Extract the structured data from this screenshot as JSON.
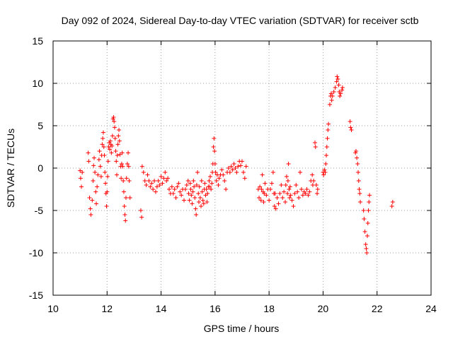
{
  "chart_data": {
    "type": "scatter",
    "title": "Day 092 of 2024, Sidereal Day-to-day VTEC variation (SDTVAR) for receiver sctb",
    "xlabel": "GPS time / hours",
    "ylabel": "SDTVAR / TECUs",
    "xlim": [
      10,
      24
    ],
    "ylim": [
      -15,
      15
    ],
    "xticks": [
      10,
      12,
      14,
      16,
      18,
      20,
      22,
      24
    ],
    "yticks": [
      -15,
      -10,
      -5,
      0,
      5,
      10,
      15
    ],
    "xtick_labels": [
      "10",
      "12",
      "14",
      "16",
      "18",
      "20",
      "22",
      "24"
    ],
    "ytick_labels": [
      "-15",
      "-10",
      "-5",
      "0",
      "5",
      "10",
      "15"
    ],
    "grid": true,
    "legend": "none",
    "marker": "+",
    "color": "#ff0000",
    "series": [
      {
        "name": "SDTVAR",
        "points": [
          [
            11.0,
            -0.3
          ],
          [
            11.02,
            -1.2
          ],
          [
            11.05,
            -2.2
          ],
          [
            11.08,
            -0.5
          ],
          [
            11.3,
            1.8
          ],
          [
            11.32,
            0.8
          ],
          [
            11.35,
            -3.5
          ],
          [
            11.38,
            -4.8
          ],
          [
            11.4,
            -5.5
          ],
          [
            11.45,
            -3.8
          ],
          [
            11.48,
            -1.5
          ],
          [
            11.5,
            0.3
          ],
          [
            11.52,
            1.2
          ],
          [
            11.55,
            -0.5
          ],
          [
            11.58,
            -2.8
          ],
          [
            11.6,
            -4.2
          ],
          [
            11.63,
            -2.2
          ],
          [
            11.66,
            -0.8
          ],
          [
            11.7,
            1.0
          ],
          [
            11.72,
            2.0
          ],
          [
            11.75,
            0.2
          ],
          [
            11.78,
            -1.0
          ],
          [
            11.8,
            1.5
          ],
          [
            11.82,
            2.8
          ],
          [
            11.84,
            3.5
          ],
          [
            11.86,
            4.2
          ],
          [
            11.88,
            2.5
          ],
          [
            11.9,
            1.5
          ],
          [
            11.92,
            -0.5
          ],
          [
            11.94,
            -1.8
          ],
          [
            11.96,
            -3.0
          ],
          [
            11.98,
            -4.5
          ],
          [
            12.0,
            -2.8
          ],
          [
            12.02,
            -1.0
          ],
          [
            12.04,
            0.8
          ],
          [
            12.06,
            2.5
          ],
          [
            12.08,
            3.0
          ],
          [
            12.1,
            2.2
          ],
          [
            12.12,
            3.2
          ],
          [
            12.14,
            2.8
          ],
          [
            12.16,
            1.8
          ],
          [
            12.18,
            2.6
          ],
          [
            12.2,
            3.8
          ],
          [
            12.22,
            5.8
          ],
          [
            12.24,
            6.0
          ],
          [
            12.26,
            5.5
          ],
          [
            12.28,
            4.8
          ],
          [
            12.3,
            3.5
          ],
          [
            12.32,
            2.0
          ],
          [
            12.34,
            0.8
          ],
          [
            12.36,
            -0.8
          ],
          [
            12.38,
            1.5
          ],
          [
            12.4,
            2.8
          ],
          [
            12.42,
            3.8
          ],
          [
            12.44,
            4.5
          ],
          [
            12.46,
            3.2
          ],
          [
            12.48,
            1.6
          ],
          [
            12.5,
            0.2
          ],
          [
            12.52,
            -1.2
          ],
          [
            12.54,
            0.5
          ],
          [
            12.56,
            1.8
          ],
          [
            12.58,
            0.2
          ],
          [
            12.6,
            -1.5
          ],
          [
            12.62,
            -2.8
          ],
          [
            12.64,
            -4.5
          ],
          [
            12.66,
            -5.5
          ],
          [
            12.68,
            -6.2
          ],
          [
            12.7,
            -3.5
          ],
          [
            12.72,
            -1.2
          ],
          [
            12.75,
            0.5
          ],
          [
            12.78,
            1.8
          ],
          [
            12.8,
            0.2
          ],
          [
            12.82,
            -1.5
          ],
          [
            12.85,
            -3.5
          ],
          [
            13.25,
            -5.0
          ],
          [
            13.28,
            -5.8
          ],
          [
            13.3,
            0.2
          ],
          [
            13.35,
            -0.5
          ],
          [
            13.4,
            -1.5
          ],
          [
            13.45,
            -2.0
          ],
          [
            13.5,
            -0.8
          ],
          [
            13.55,
            -1.5
          ],
          [
            13.6,
            -2.2
          ],
          [
            13.65,
            -1.8
          ],
          [
            13.7,
            -2.5
          ],
          [
            13.75,
            -1.5
          ],
          [
            13.8,
            -2.8
          ],
          [
            13.85,
            -2.2
          ],
          [
            13.9,
            -1.5
          ],
          [
            13.95,
            -2.0
          ],
          [
            14.0,
            -1.0
          ],
          [
            14.05,
            -1.8
          ],
          [
            14.1,
            -1.2
          ],
          [
            14.15,
            -0.5
          ],
          [
            14.2,
            -1.5
          ],
          [
            14.25,
            -1.2
          ],
          [
            14.3,
            -2.5
          ],
          [
            14.35,
            -3.0
          ],
          [
            14.4,
            -2.2
          ],
          [
            14.45,
            -3.0
          ],
          [
            14.5,
            -2.5
          ],
          [
            14.55,
            -3.5
          ],
          [
            14.6,
            -2.2
          ],
          [
            14.65,
            -1.8
          ],
          [
            14.7,
            -2.8
          ],
          [
            14.75,
            -3.2
          ],
          [
            14.8,
            -2.5
          ],
          [
            14.85,
            -3.8
          ],
          [
            14.9,
            -2.5
          ],
          [
            14.95,
            -2.0
          ],
          [
            15.0,
            -1.5
          ],
          [
            15.02,
            -3.0
          ],
          [
            15.05,
            -3.8
          ],
          [
            15.08,
            -1.8
          ],
          [
            15.1,
            -2.5
          ],
          [
            15.12,
            -3.2
          ],
          [
            15.15,
            -4.2
          ],
          [
            15.18,
            -2.8
          ],
          [
            15.2,
            -1.5
          ],
          [
            15.22,
            -2.2
          ],
          [
            15.25,
            -3.5
          ],
          [
            15.28,
            -4.8
          ],
          [
            15.3,
            -5.5
          ],
          [
            15.32,
            -2.0
          ],
          [
            15.35,
            -0.5
          ],
          [
            15.38,
            -3.0
          ],
          [
            15.4,
            -4.0
          ],
          [
            15.42,
            -2.2
          ],
          [
            15.45,
            -3.5
          ],
          [
            15.48,
            -4.5
          ],
          [
            15.5,
            -1.5
          ],
          [
            15.52,
            -2.8
          ],
          [
            15.55,
            -3.8
          ],
          [
            15.58,
            -4.2
          ],
          [
            15.6,
            -2.5
          ],
          [
            15.62,
            -1.8
          ],
          [
            15.65,
            -3.2
          ],
          [
            15.68,
            -2.5
          ],
          [
            15.7,
            -4.0
          ],
          [
            15.72,
            -3.0
          ],
          [
            15.75,
            -2.2
          ],
          [
            15.78,
            -1.5
          ],
          [
            15.8,
            -2.2
          ],
          [
            15.82,
            -1.0
          ],
          [
            15.85,
            -2.5
          ],
          [
            15.88,
            -1.8
          ],
          [
            15.9,
            -0.5
          ],
          [
            15.92,
            0.5
          ],
          [
            15.94,
            2.5
          ],
          [
            15.96,
            3.5
          ],
          [
            15.98,
            2.0
          ],
          [
            16.0,
            0.5
          ],
          [
            16.02,
            -0.5
          ],
          [
            16.05,
            -1.5
          ],
          [
            16.08,
            -0.8
          ],
          [
            16.12,
            -2.0
          ],
          [
            16.15,
            -1.2
          ],
          [
            16.2,
            -0.8
          ],
          [
            16.25,
            -0.2
          ],
          [
            16.3,
            -0.8
          ],
          [
            16.35,
            -1.5
          ],
          [
            16.4,
            -2.5
          ],
          [
            16.45,
            -0.5
          ],
          [
            16.5,
            0.0
          ],
          [
            16.55,
            -0.5
          ],
          [
            16.6,
            0.2
          ],
          [
            16.65,
            -0.2
          ],
          [
            16.7,
            0.5
          ],
          [
            16.75,
            0.0
          ],
          [
            16.8,
            -0.5
          ],
          [
            16.85,
            0.2
          ],
          [
            16.9,
            0.8
          ],
          [
            16.95,
            0.3
          ],
          [
            17.0,
            0.8
          ],
          [
            17.05,
            -0.5
          ],
          [
            17.1,
            -1.2
          ],
          [
            17.15,
            0.2
          ],
          [
            17.6,
            -2.5
          ],
          [
            17.63,
            -3.5
          ],
          [
            17.66,
            -2.2
          ],
          [
            17.7,
            -3.8
          ],
          [
            17.72,
            -2.5
          ],
          [
            17.75,
            -0.8
          ],
          [
            17.78,
            -2.8
          ],
          [
            17.8,
            -4.0
          ],
          [
            17.82,
            -3.0
          ],
          [
            17.85,
            -1.8
          ],
          [
            17.9,
            -3.2
          ],
          [
            17.95,
            -2.5
          ],
          [
            18.0,
            -3.8
          ],
          [
            18.05,
            -2.5
          ],
          [
            18.1,
            -1.8
          ],
          [
            18.15,
            -0.5
          ],
          [
            18.18,
            -3.0
          ],
          [
            18.2,
            -4.5
          ],
          [
            18.22,
            -3.0
          ],
          [
            18.25,
            -4.8
          ],
          [
            18.3,
            -3.5
          ],
          [
            18.35,
            -4.2
          ],
          [
            18.4,
            -3.0
          ],
          [
            18.45,
            -2.0
          ],
          [
            18.5,
            -3.5
          ],
          [
            18.55,
            -2.8
          ],
          [
            18.6,
            -4.0
          ],
          [
            18.62,
            -2.0
          ],
          [
            18.65,
            -1.0
          ],
          [
            18.68,
            -3.0
          ],
          [
            18.7,
            -1.5
          ],
          [
            18.72,
            0.5
          ],
          [
            18.74,
            -2.5
          ],
          [
            18.76,
            -3.5
          ],
          [
            18.78,
            -2.2
          ],
          [
            18.8,
            -3.2
          ],
          [
            18.85,
            -3.8
          ],
          [
            18.9,
            -4.5
          ],
          [
            18.95,
            -3.0
          ],
          [
            19.0,
            -2.0
          ],
          [
            19.05,
            -2.8
          ],
          [
            19.1,
            -3.5
          ],
          [
            19.15,
            -0.5
          ],
          [
            19.2,
            -2.5
          ],
          [
            19.25,
            -3.2
          ],
          [
            19.3,
            -2.8
          ],
          [
            19.35,
            -3.0
          ],
          [
            19.4,
            -2.5
          ],
          [
            19.45,
            -3.2
          ],
          [
            19.5,
            -2.8
          ],
          [
            19.55,
            -1.5
          ],
          [
            19.6,
            -0.8
          ],
          [
            19.62,
            -2.0
          ],
          [
            19.65,
            -1.5
          ],
          [
            19.7,
            3.0
          ],
          [
            19.72,
            2.5
          ],
          [
            19.75,
            -2.0
          ],
          [
            19.78,
            -3.0
          ],
          [
            19.8,
            -2.5
          ],
          [
            20.0,
            -0.5
          ],
          [
            20.02,
            -0.8
          ],
          [
            20.05,
            -0.2
          ],
          [
            20.08,
            -0.5
          ],
          [
            20.1,
            0.5
          ],
          [
            20.12,
            1.5
          ],
          [
            20.14,
            2.5
          ],
          [
            20.16,
            3.5
          ],
          [
            20.18,
            4.5
          ],
          [
            20.2,
            5.2
          ],
          [
            20.25,
            7.5
          ],
          [
            20.28,
            8.5
          ],
          [
            20.3,
            8.8
          ],
          [
            20.32,
            8.0
          ],
          [
            20.35,
            8.5
          ],
          [
            20.4,
            9.0
          ],
          [
            20.45,
            9.5
          ],
          [
            20.5,
            10.2
          ],
          [
            20.52,
            10.8
          ],
          [
            20.55,
            10.5
          ],
          [
            20.58,
            9.8
          ],
          [
            20.6,
            9.0
          ],
          [
            20.62,
            8.5
          ],
          [
            20.65,
            8.8
          ],
          [
            20.7,
            9.2
          ],
          [
            20.72,
            9.5
          ],
          [
            21.0,
            5.5
          ],
          [
            21.02,
            4.8
          ],
          [
            21.05,
            4.5
          ],
          [
            21.2,
            1.8
          ],
          [
            21.22,
            2.0
          ],
          [
            21.25,
            1.2
          ],
          [
            21.28,
            0.5
          ],
          [
            21.3,
            -0.5
          ],
          [
            21.32,
            -1.5
          ],
          [
            21.34,
            -2.5
          ],
          [
            21.36,
            -3.0
          ],
          [
            21.38,
            -4.0
          ],
          [
            21.5,
            -5.0
          ],
          [
            21.52,
            -6.0
          ],
          [
            21.55,
            -7.5
          ],
          [
            21.58,
            -9.0
          ],
          [
            21.6,
            -9.5
          ],
          [
            21.62,
            -10.0
          ],
          [
            21.64,
            -8.0
          ],
          [
            21.66,
            -6.5
          ],
          [
            21.68,
            -5.0
          ],
          [
            21.7,
            -4.0
          ],
          [
            21.72,
            -3.2
          ],
          [
            22.55,
            -4.5
          ],
          [
            22.58,
            -4.0
          ]
        ]
      }
    ]
  }
}
